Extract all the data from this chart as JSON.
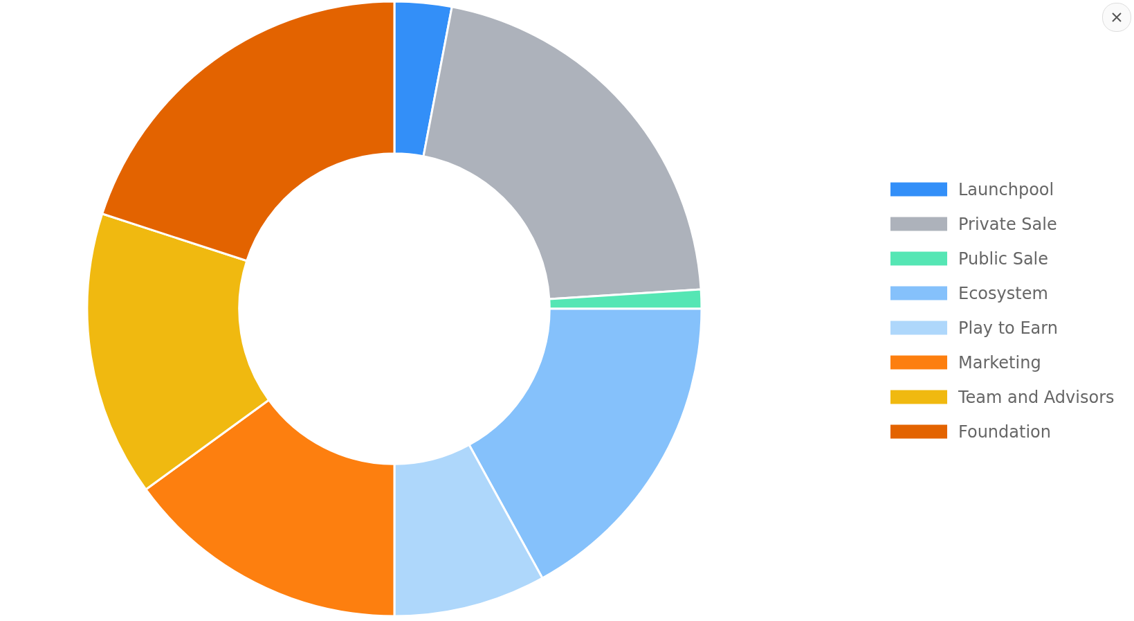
{
  "chart_data": {
    "type": "donut",
    "categories": [
      "Launchpool",
      "Private Sale",
      "Public Sale",
      "Ecosystem",
      "Play to Earn",
      "Marketing",
      "Team and Advisors",
      "Foundation"
    ],
    "values": [
      3,
      21,
      1,
      17,
      8,
      15,
      15,
      20
    ],
    "colors": [
      "#338ff8",
      "#adb2bb",
      "#55e6b4",
      "#85c1fb",
      "#aed7fb",
      "#fd7f0f",
      "#f0b910",
      "#e36300"
    ],
    "legend": "right"
  }
}
